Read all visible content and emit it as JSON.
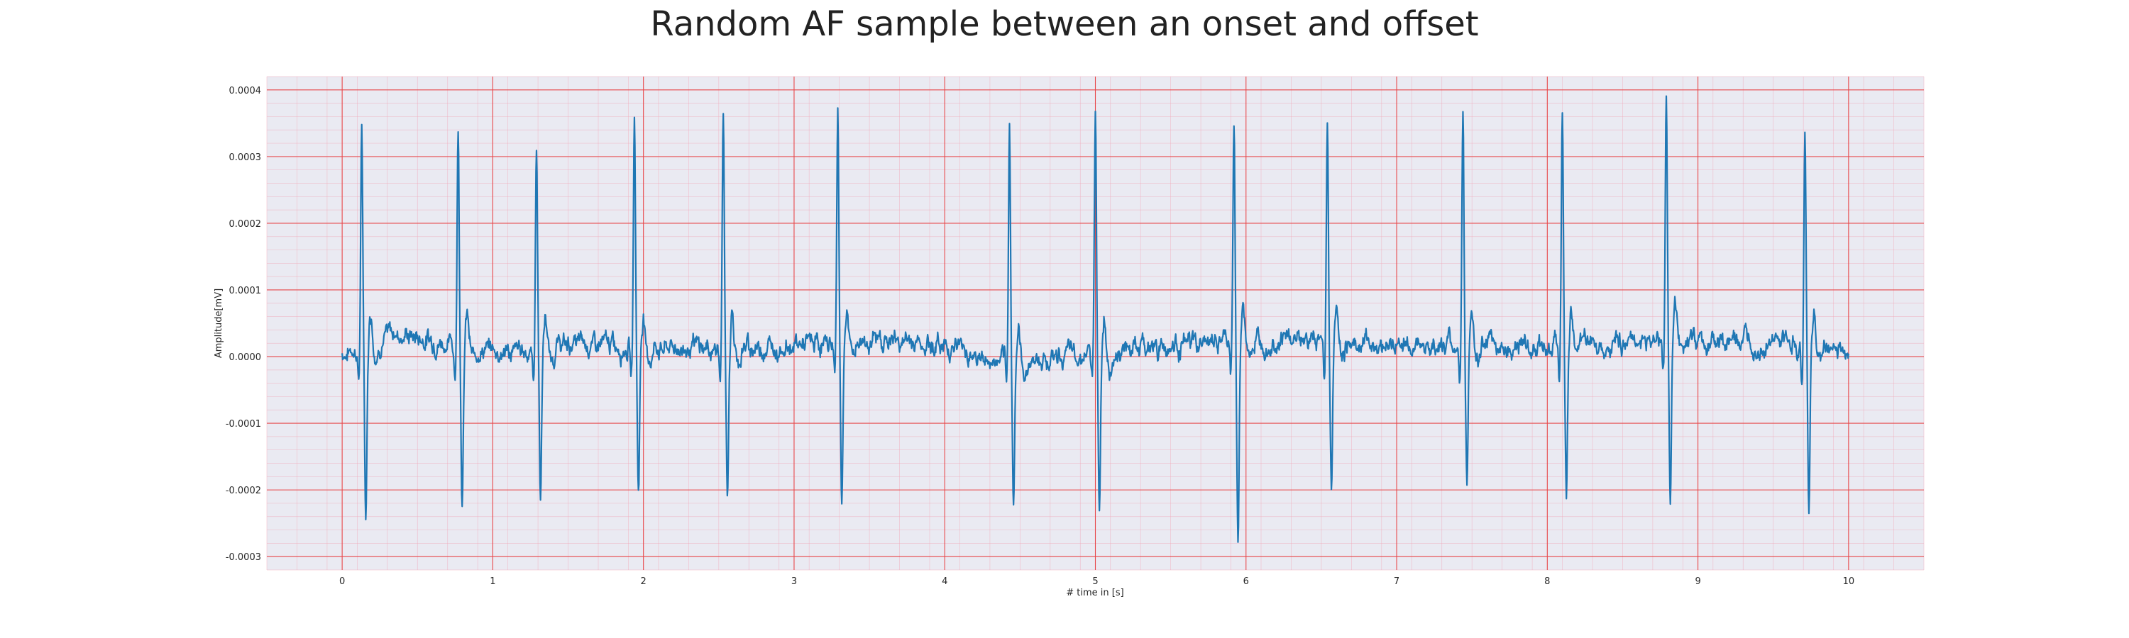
{
  "chart_data": {
    "type": "line",
    "title": "Random AF sample between an onset and offset",
    "xlabel": "# time in [s]",
    "ylabel": "Amplitude[mV]",
    "xlim": [
      -0.5,
      10.5
    ],
    "ylim": [
      -0.00032,
      0.00042
    ],
    "x_ticks": [
      0,
      1,
      2,
      3,
      4,
      5,
      6,
      7,
      8,
      9,
      10
    ],
    "x_tick_labels": [
      "0",
      "1",
      "2",
      "3",
      "4",
      "5",
      "6",
      "7",
      "8",
      "9",
      "10"
    ],
    "y_ticks": [
      -0.0003,
      -0.0002,
      -0.0001,
      0.0,
      0.0001,
      0.0002,
      0.0003,
      0.0004
    ],
    "y_tick_labels": [
      "-0.0003",
      "-0.0002",
      "-0.0001",
      "0.0000",
      "0.0001",
      "0.0002",
      "0.0003",
      "0.0004"
    ],
    "grid": true,
    "minor_grid": true,
    "colors": {
      "line": "#1f77b4",
      "major_grid": "#e8474a",
      "minor_grid": "#f2a7b8",
      "plot_background": "#eaeaf2"
    },
    "series": [
      {
        "beats": [
          {
            "t": 0.13,
            "peak": 0.000315,
            "trough": -0.000258
          },
          {
            "t": 0.77,
            "peak": 0.000333,
            "trough": -0.00023
          },
          {
            "t": 1.29,
            "peak": 0.000308,
            "trough": -0.000215
          },
          {
            "t": 1.94,
            "peak": 0.000352,
            "trough": -0.000213
          },
          {
            "t": 2.53,
            "peak": 0.000343,
            "trough": -0.000218
          },
          {
            "t": 3.29,
            "peak": 0.000352,
            "trough": -0.000237
          },
          {
            "t": 4.43,
            "peak": 0.000352,
            "trough": -0.000205
          },
          {
            "t": 5.0,
            "peak": 0.000352,
            "trough": -0.00023
          },
          {
            "t": 5.92,
            "peak": 0.000322,
            "trough": -0.00029
          },
          {
            "t": 6.54,
            "peak": 0.000331,
            "trough": -0.000222
          },
          {
            "t": 7.44,
            "peak": 0.000345,
            "trough": -0.000198
          },
          {
            "t": 8.1,
            "peak": 0.000348,
            "trough": -0.00022
          },
          {
            "t": 8.79,
            "peak": 0.000388,
            "trough": -0.000233
          },
          {
            "t": 9.71,
            "peak": 0.000333,
            "trough": -0.00025
          }
        ],
        "baseline": [
          [
            0.0,
            8e-06
          ],
          [
            0.35,
            6.5e-05
          ],
          [
            1.1,
            1e-05
          ],
          [
            1.55,
            3.5e-05
          ],
          [
            2.5,
            2e-05
          ],
          [
            3.6,
            4.5e-05
          ],
          [
            4.1,
            3e-05
          ],
          [
            4.3,
            -2e-05
          ],
          [
            5.3,
            2.5e-05
          ],
          [
            6.25,
            5e-05
          ],
          [
            6.9,
            3.5e-05
          ],
          [
            7.7,
            2.5e-05
          ],
          [
            8.25,
            4.2e-05
          ],
          [
            8.95,
            4.5e-05
          ],
          [
            9.9,
            2.5e-05
          ],
          [
            10.0,
            1e-05
          ]
        ]
      }
    ]
  }
}
